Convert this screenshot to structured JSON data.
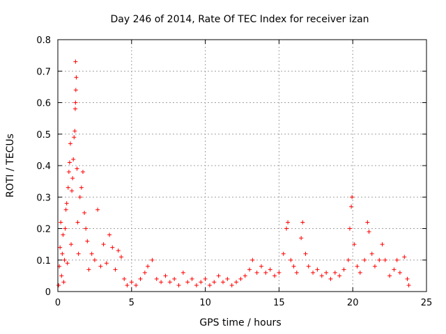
{
  "chart_data": {
    "type": "scatter",
    "title": "Day 246 of 2014, Rate Of TEC Index for receiver izan",
    "xlabel": "GPS time / hours",
    "ylabel": "ROTI / TECUs",
    "xlim": [
      0,
      25
    ],
    "ylim": [
      0,
      0.8
    ],
    "xticks": [
      0,
      5,
      10,
      15,
      20,
      25
    ],
    "yticks": [
      0,
      0.1,
      0.2,
      0.3,
      0.4,
      0.5,
      0.6,
      0.7,
      0.8
    ],
    "grid": true,
    "marker": "+",
    "color": "#ff0000",
    "series": [
      {
        "name": "ROTI",
        "points": [
          [
            0.05,
            0.02
          ],
          [
            0.1,
            0.08
          ],
          [
            0.15,
            0.14
          ],
          [
            0.2,
            0.22
          ],
          [
            0.25,
            0.05
          ],
          [
            0.3,
            0.12
          ],
          [
            0.35,
            0.18
          ],
          [
            0.4,
            0.03
          ],
          [
            0.45,
            0.1
          ],
          [
            0.5,
            0.2
          ],
          [
            0.55,
            0.26
          ],
          [
            0.6,
            0.28
          ],
          [
            0.65,
            0.09
          ],
          [
            0.7,
            0.33
          ],
          [
            0.75,
            0.38
          ],
          [
            0.8,
            0.41
          ],
          [
            0.85,
            0.47
          ],
          [
            0.9,
            0.15
          ],
          [
            0.95,
            0.32
          ],
          [
            1.0,
            0.36
          ],
          [
            1.05,
            0.42
          ],
          [
            1.1,
            0.49
          ],
          [
            1.15,
            0.51
          ],
          [
            1.18,
            0.58
          ],
          [
            1.2,
            0.6
          ],
          [
            1.22,
            0.64
          ],
          [
            1.25,
            0.68
          ],
          [
            1.2,
            0.73
          ],
          [
            1.3,
            0.39
          ],
          [
            1.35,
            0.22
          ],
          [
            1.4,
            0.12
          ],
          [
            1.5,
            0.3
          ],
          [
            1.6,
            0.33
          ],
          [
            1.7,
            0.38
          ],
          [
            1.8,
            0.25
          ],
          [
            1.9,
            0.2
          ],
          [
            2.0,
            0.16
          ],
          [
            2.1,
            0.07
          ],
          [
            2.3,
            0.12
          ],
          [
            2.5,
            0.1
          ],
          [
            2.7,
            0.26
          ],
          [
            2.9,
            0.08
          ],
          [
            3.1,
            0.15
          ],
          [
            3.3,
            0.09
          ],
          [
            3.5,
            0.18
          ],
          [
            3.7,
            0.14
          ],
          [
            3.9,
            0.07
          ],
          [
            4.1,
            0.13
          ],
          [
            4.3,
            0.11
          ],
          [
            4.5,
            0.04
          ],
          [
            4.7,
            0.02
          ],
          [
            5.0,
            0.03
          ],
          [
            5.3,
            0.02
          ],
          [
            5.6,
            0.04
          ],
          [
            5.9,
            0.06
          ],
          [
            6.1,
            0.08
          ],
          [
            6.4,
            0.1
          ],
          [
            6.7,
            0.04
          ],
          [
            7.0,
            0.03
          ],
          [
            7.3,
            0.05
          ],
          [
            7.6,
            0.03
          ],
          [
            7.9,
            0.04
          ],
          [
            8.2,
            0.02
          ],
          [
            8.5,
            0.06
          ],
          [
            8.8,
            0.03
          ],
          [
            9.1,
            0.04
          ],
          [
            9.4,
            0.02
          ],
          [
            9.7,
            0.03
          ],
          [
            10.0,
            0.04
          ],
          [
            10.3,
            0.02
          ],
          [
            10.6,
            0.03
          ],
          [
            10.9,
            0.05
          ],
          [
            11.2,
            0.03
          ],
          [
            11.5,
            0.04
          ],
          [
            11.8,
            0.02
          ],
          [
            12.1,
            0.03
          ],
          [
            12.4,
            0.04
          ],
          [
            12.7,
            0.05
          ],
          [
            13.0,
            0.07
          ],
          [
            13.2,
            0.1
          ],
          [
            13.5,
            0.06
          ],
          [
            13.8,
            0.08
          ],
          [
            14.1,
            0.06
          ],
          [
            14.4,
            0.07
          ],
          [
            14.7,
            0.05
          ],
          [
            15.0,
            0.06
          ],
          [
            15.3,
            0.12
          ],
          [
            15.5,
            0.2
          ],
          [
            15.6,
            0.22
          ],
          [
            15.8,
            0.1
          ],
          [
            16.0,
            0.08
          ],
          [
            16.2,
            0.06
          ],
          [
            16.5,
            0.17
          ],
          [
            16.6,
            0.22
          ],
          [
            16.8,
            0.12
          ],
          [
            17.0,
            0.08
          ],
          [
            17.3,
            0.06
          ],
          [
            17.6,
            0.07
          ],
          [
            17.9,
            0.05
          ],
          [
            18.2,
            0.06
          ],
          [
            18.5,
            0.04
          ],
          [
            18.8,
            0.06
          ],
          [
            19.1,
            0.05
          ],
          [
            19.4,
            0.07
          ],
          [
            19.7,
            0.1
          ],
          [
            19.8,
            0.2
          ],
          [
            19.9,
            0.27
          ],
          [
            19.95,
            0.3
          ],
          [
            20.1,
            0.15
          ],
          [
            20.3,
            0.08
          ],
          [
            20.5,
            0.06
          ],
          [
            20.8,
            0.1
          ],
          [
            21.0,
            0.22
          ],
          [
            21.1,
            0.19
          ],
          [
            21.3,
            0.12
          ],
          [
            21.5,
            0.08
          ],
          [
            21.8,
            0.1
          ],
          [
            22.0,
            0.15
          ],
          [
            22.2,
            0.1
          ],
          [
            22.5,
            0.05
          ],
          [
            22.8,
            0.07
          ],
          [
            23.0,
            0.1
          ],
          [
            23.2,
            0.06
          ],
          [
            23.5,
            0.11
          ],
          [
            23.7,
            0.04
          ],
          [
            23.8,
            0.02
          ]
        ]
      }
    ]
  }
}
